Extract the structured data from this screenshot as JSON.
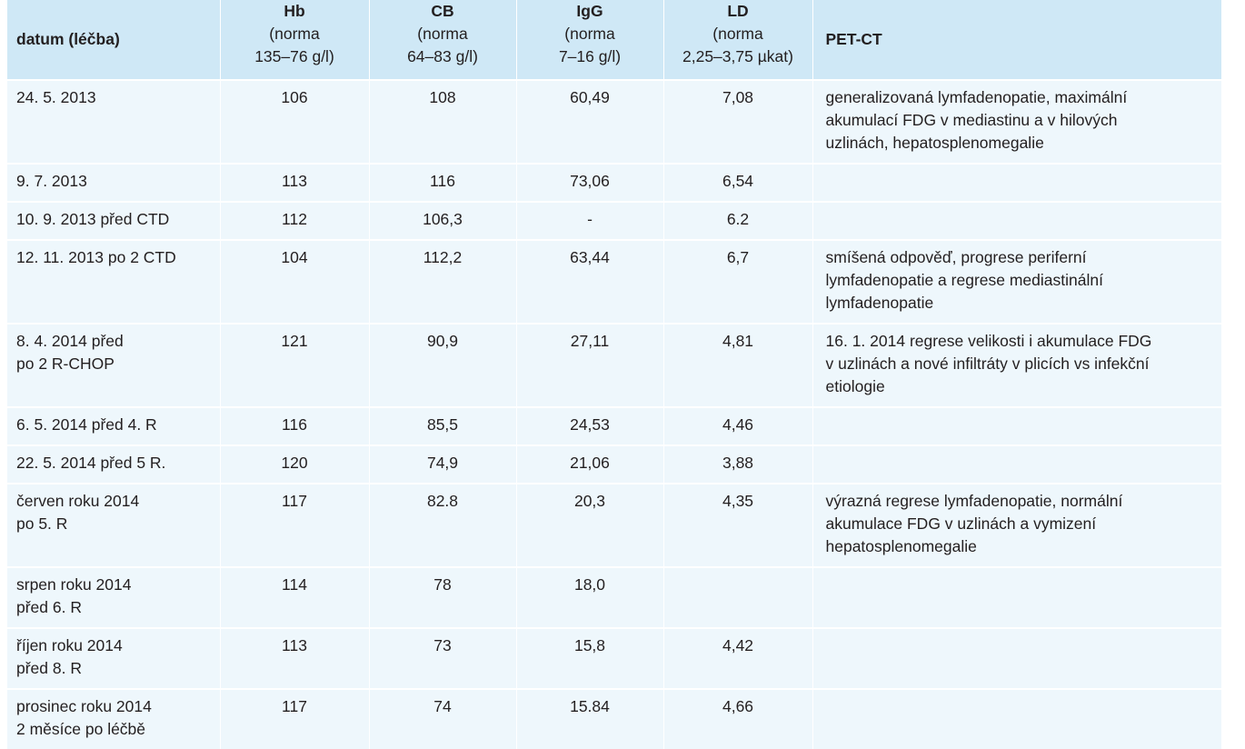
{
  "headers": [
    {
      "title": "datum (léčba)",
      "lines": []
    },
    {
      "title": "Hb",
      "lines": [
        "(norma",
        "135–76 g/l)"
      ]
    },
    {
      "title": "CB",
      "lines": [
        "(norma",
        "64–83 g/l)"
      ]
    },
    {
      "title": "IgG",
      "lines": [
        "(norma",
        "7–16 g/l)"
      ]
    },
    {
      "title": "LD",
      "lines": [
        "(norma",
        "2,25–3,75 µkat)"
      ]
    },
    {
      "title": "PET-CT",
      "lines": []
    }
  ],
  "rows": [
    {
      "date": [
        "24. 5. 2013"
      ],
      "hb": "106",
      "cb": "108",
      "igg": "60,49",
      "ld": "7,08",
      "pet": [
        "generalizovaná lymfadenopatie, maximální",
        "akumulací FDG v mediastinu a v hilových",
        "uzlinách, hepatosplenomegalie"
      ]
    },
    {
      "date": [
        "9. 7. 2013"
      ],
      "hb": "113",
      "cb": "116",
      "igg": "73,06",
      "ld": "6,54",
      "pet": []
    },
    {
      "date": [
        "10. 9. 2013 před CTD"
      ],
      "hb": "112",
      "cb": "106,3",
      "igg": "-",
      "ld": "6.2",
      "pet": []
    },
    {
      "date": [
        "12. 11. 2013 po 2 CTD"
      ],
      "hb": "104",
      "cb": "112,2",
      "igg": "63,44",
      "ld": "6,7",
      "pet": [
        "smíšená odpověď, progrese periferní",
        "lymfadenopatie a regrese mediastinální",
        "lymfadenopatie"
      ]
    },
    {
      "date": [
        "8. 4. 2014 před",
        "po 2 R-CHOP"
      ],
      "hb": "121",
      "cb": "90,9",
      "igg": "27,11",
      "ld": "4,81",
      "pet": [
        "16. 1. 2014 regrese velikosti i akumulace FDG",
        "v uzlinách a nové infiltráty v plicích vs infekční",
        "etiologie"
      ]
    },
    {
      "date": [
        "6. 5. 2014 před 4. R"
      ],
      "hb": "116",
      "cb": "85,5",
      "igg": "24,53",
      "ld": "4,46",
      "pet": []
    },
    {
      "date": [
        "22. 5. 2014 před 5 R."
      ],
      "hb": "120",
      "cb": "74,9",
      "igg": "21,06",
      "ld": "3,88",
      "pet": []
    },
    {
      "date": [
        "červen roku 2014",
        "po 5. R"
      ],
      "hb": "117",
      "cb": "82.8",
      "igg": "20,3",
      "ld": "4,35",
      "pet": [
        "výrazná regrese lymfadenopatie, normální",
        "akumulace FDG v uzlinách a vymizení",
        "hepatosplenomegalie"
      ]
    },
    {
      "date": [
        "srpen roku 2014",
        "před 6. R"
      ],
      "hb": "114",
      "cb": "78",
      "igg": "18,0",
      "ld": "",
      "pet": []
    },
    {
      "date": [
        "říjen roku 2014",
        "před 8. R"
      ],
      "hb": "113",
      "cb": "73",
      "igg": "15,8",
      "ld": "4,42",
      "pet": []
    },
    {
      "date": [
        "prosinec roku 2014",
        "2 měsíce po léčbě"
      ],
      "hb": "117",
      "cb": "74",
      "igg": "15.84",
      "ld": "4,66",
      "pet": []
    }
  ]
}
